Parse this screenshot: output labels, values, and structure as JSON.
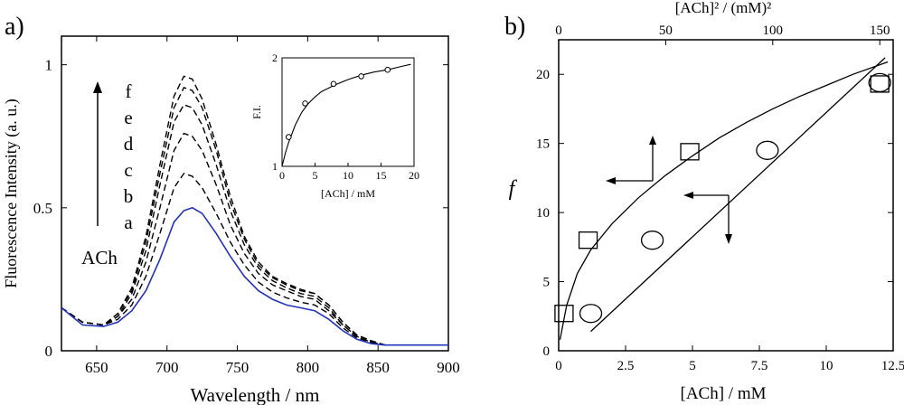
{
  "chart_data": [
    {
      "panel": "a)",
      "type": "line",
      "xlabel": "Wavelength / nm",
      "ylabel": "Fluorescence Intensity (a. u.)",
      "xlim": [
        625,
        900
      ],
      "ylim": [
        0,
        1.1
      ],
      "xticks": [
        650,
        700,
        750,
        800,
        850,
        900
      ],
      "yticks": [
        0,
        0.5,
        1
      ],
      "ytick_labels": [
        "0",
        "0.5",
        "1"
      ],
      "x": [
        625,
        640,
        655,
        665,
        675,
        685,
        695,
        705,
        712,
        718,
        725,
        735,
        745,
        755,
        765,
        775,
        785,
        795,
        805,
        815,
        825,
        835,
        845,
        855,
        870,
        885,
        900
      ],
      "series": [
        {
          "name": "a",
          "color": "#2233bb",
          "style": "solid",
          "values": [
            0.15,
            0.09,
            0.085,
            0.1,
            0.14,
            0.21,
            0.32,
            0.45,
            0.49,
            0.5,
            0.48,
            0.41,
            0.33,
            0.26,
            0.21,
            0.18,
            0.16,
            0.15,
            0.14,
            0.11,
            0.07,
            0.04,
            0.025,
            0.02,
            0.02,
            0.02,
            0.02
          ]
        },
        {
          "name": "b",
          "color": "#000000",
          "style": "dashed",
          "values": [
            0.15,
            0.1,
            0.09,
            0.11,
            0.16,
            0.26,
            0.41,
            0.57,
            0.62,
            0.61,
            0.57,
            0.48,
            0.38,
            0.3,
            0.24,
            0.205,
            0.185,
            0.17,
            0.16,
            0.13,
            0.08,
            0.045,
            0.03,
            0.02,
            0.02,
            0.02,
            0.02
          ]
        },
        {
          "name": "c",
          "color": "#000000",
          "style": "dashed",
          "values": [
            0.15,
            0.1,
            0.09,
            0.12,
            0.18,
            0.31,
            0.5,
            0.7,
            0.76,
            0.75,
            0.7,
            0.58,
            0.44,
            0.34,
            0.27,
            0.23,
            0.21,
            0.19,
            0.18,
            0.14,
            0.09,
            0.05,
            0.03,
            0.02,
            0.02,
            0.02,
            0.02
          ]
        },
        {
          "name": "d",
          "color": "#000000",
          "style": "dashed",
          "values": [
            0.15,
            0.1,
            0.09,
            0.12,
            0.2,
            0.35,
            0.58,
            0.8,
            0.86,
            0.85,
            0.79,
            0.65,
            0.49,
            0.37,
            0.29,
            0.245,
            0.22,
            0.2,
            0.19,
            0.15,
            0.09,
            0.05,
            0.03,
            0.02,
            0.02,
            0.02,
            0.02
          ]
        },
        {
          "name": "e",
          "color": "#000000",
          "style": "dashed",
          "values": [
            0.15,
            0.1,
            0.09,
            0.13,
            0.21,
            0.38,
            0.62,
            0.85,
            0.92,
            0.91,
            0.85,
            0.7,
            0.52,
            0.39,
            0.3,
            0.255,
            0.23,
            0.21,
            0.2,
            0.16,
            0.1,
            0.055,
            0.035,
            0.02,
            0.02,
            0.02,
            0.02
          ]
        },
        {
          "name": "f",
          "color": "#000000",
          "style": "dashed",
          "values": [
            0.15,
            0.1,
            0.09,
            0.13,
            0.22,
            0.4,
            0.65,
            0.89,
            0.96,
            0.95,
            0.88,
            0.72,
            0.54,
            0.4,
            0.31,
            0.26,
            0.235,
            0.215,
            0.2,
            0.16,
            0.1,
            0.055,
            0.035,
            0.02,
            0.02,
            0.02,
            0.02
          ]
        }
      ],
      "curve_labels": [
        "f",
        "e",
        "d",
        "c",
        "b",
        "a"
      ],
      "arrow_label": "ACh",
      "inset": {
        "type": "scatter",
        "xlabel": "[ACh] / mM",
        "ylabel": "F.I.",
        "xlim": [
          0,
          20
        ],
        "ylim": [
          1,
          2
        ],
        "xticks": [
          0,
          5,
          10,
          15,
          20
        ],
        "yticks": [
          1,
          2
        ],
        "points": {
          "x": [
            1.0,
            3.5,
            7.8,
            12.0,
            16.0
          ],
          "y": [
            1.27,
            1.58,
            1.76,
            1.83,
            1.89
          ]
        },
        "fit": {
          "x": [
            0,
            0.5,
            1,
            2,
            3,
            4,
            5,
            6,
            7,
            8,
            10,
            12,
            14,
            16,
            18,
            19.5
          ],
          "y": [
            1.0,
            1.12,
            1.22,
            1.38,
            1.5,
            1.58,
            1.64,
            1.69,
            1.72,
            1.75,
            1.8,
            1.84,
            1.87,
            1.89,
            1.92,
            1.94
          ]
        }
      }
    },
    {
      "panel": "b)",
      "type": "scatter",
      "xlabel": "[ACh] / mM",
      "ylabel": "f",
      "top_xlabel": "[ACh]² / (mM)²",
      "xlim": [
        0,
        12.5
      ],
      "ylim": [
        0,
        22.5
      ],
      "xticks": [
        0,
        2.5,
        5,
        7.5,
        10,
        12.5
      ],
      "xtick_labels": [
        "0",
        "2.5",
        "5",
        "7.5",
        "10",
        "12.5"
      ],
      "yticks": [
        0,
        5,
        10,
        15,
        20
      ],
      "top_xlim": [
        0,
        156.25
      ],
      "top_xticks": [
        0,
        50,
        100,
        150
      ],
      "squares": {
        "x": [
          0.2,
          1.1,
          4.9,
          12.0
        ],
        "y": [
          2.7,
          8.0,
          14.4,
          19.3
        ]
      },
      "circles": {
        "x": [
          1.2,
          3.5,
          7.8,
          12.0
        ],
        "y": [
          2.7,
          8.0,
          14.5,
          19.4
        ]
      },
      "square_fit": {
        "x": [
          0.05,
          0.3,
          0.7,
          1.2,
          2,
          3,
          4,
          5,
          6,
          7,
          8,
          9,
          10,
          11,
          12.3
        ],
        "y": [
          0.8,
          3.3,
          5.6,
          7.3,
          9.2,
          11.1,
          12.7,
          14.1,
          15.4,
          16.5,
          17.5,
          18.4,
          19.2,
          20.0,
          20.9
        ]
      },
      "circle_fit": {
        "x": [
          1.2,
          12.2
        ],
        "y": [
          1.4,
          21.2
        ]
      }
    }
  ]
}
